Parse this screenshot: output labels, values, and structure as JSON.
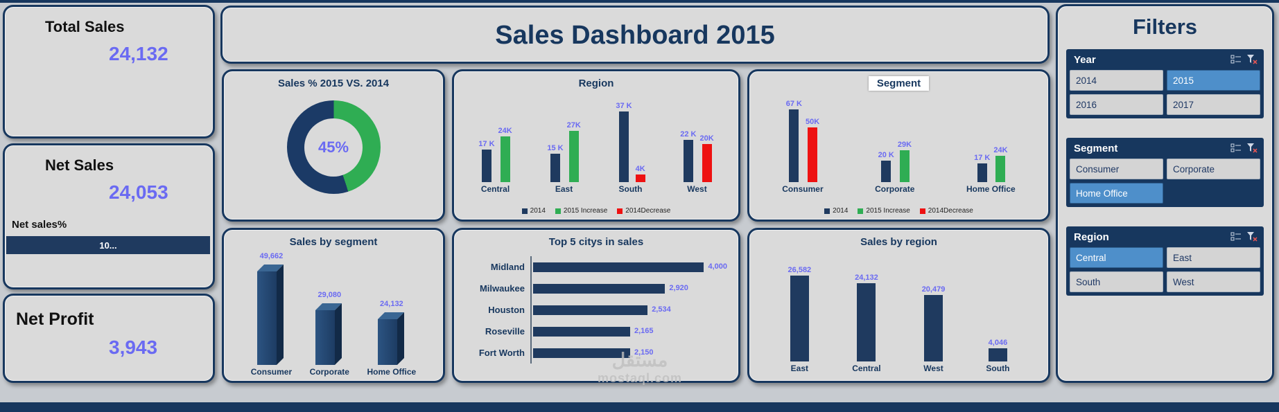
{
  "header": {
    "title": "Sales Dashboard 2015"
  },
  "watermark": {
    "line1": "مستقل",
    "line2": "mostaql.com"
  },
  "colors": {
    "navy": "#17375e",
    "bar_navy": "#1f3a5f",
    "green": "#2fad53",
    "red": "#ee1111",
    "accent": "#6a6af2",
    "panel_bg": "#dadada",
    "selected_blue": "#4e8fca"
  },
  "kpis": {
    "total_sales": {
      "label": "Total Sales",
      "value": "24,132"
    },
    "net_sales": {
      "label": "Net Sales",
      "value": "24,053",
      "sub_label": "Net sales%",
      "bar_text": "10..."
    },
    "net_profit": {
      "label": "Net Profit",
      "value": "3,943"
    }
  },
  "filters": {
    "title": "Filters",
    "groups": [
      {
        "label": "Year",
        "options": [
          {
            "label": "2014",
            "selected": false
          },
          {
            "label": "2015",
            "selected": true
          },
          {
            "label": "2016",
            "selected": false
          },
          {
            "label": "2017",
            "selected": false
          }
        ]
      },
      {
        "label": "Segment",
        "options": [
          {
            "label": "Consumer",
            "selected": false
          },
          {
            "label": "Corporate",
            "selected": false
          },
          {
            "label": "Home Office",
            "selected": true
          }
        ]
      },
      {
        "label": "Region",
        "options": [
          {
            "label": "Central",
            "selected": true
          },
          {
            "label": "East",
            "selected": false
          },
          {
            "label": "South",
            "selected": false
          },
          {
            "label": "West",
            "selected": false
          }
        ]
      }
    ]
  },
  "chart_data": [
    {
      "id": "donut",
      "type": "pie",
      "title": "Sales % 2015 VS. 2014",
      "center_label": "45%",
      "slices": [
        {
          "name": "2015 share",
          "value": 45,
          "color": "#2fad53"
        },
        {
          "name": "2014 share",
          "value": 55,
          "color": "#1b3a66"
        }
      ]
    },
    {
      "id": "region",
      "type": "bar",
      "title": "Region",
      "ylim": [
        0,
        40000
      ],
      "legend": [
        {
          "name": "2014",
          "color": "#1f3a5f"
        },
        {
          "name": "2015 Increase",
          "color": "#2fad53"
        },
        {
          "name": "2014Decrease",
          "color": "#ee1111"
        }
      ],
      "groups": [
        {
          "category": "Central",
          "bars": [
            {
              "series": "2014",
              "label": "17 K",
              "value": 17000,
              "color": "#1f3a5f"
            },
            {
              "series": "2015 Increase",
              "label": "24K",
              "value": 24000,
              "color": "#2fad53"
            }
          ]
        },
        {
          "category": "East",
          "bars": [
            {
              "series": "2014",
              "label": "15 K",
              "value": 15000,
              "color": "#1f3a5f"
            },
            {
              "series": "2015 Increase",
              "label": "27K",
              "value": 27000,
              "color": "#2fad53"
            }
          ]
        },
        {
          "category": "South",
          "bars": [
            {
              "series": "2014",
              "label": "37 K",
              "value": 37000,
              "color": "#1f3a5f"
            },
            {
              "series": "2014Decrease",
              "label": "4K",
              "value": 4000,
              "color": "#ee1111"
            }
          ]
        },
        {
          "category": "West",
          "bars": [
            {
              "series": "2014",
              "label": "22 K",
              "value": 22000,
              "color": "#1f3a5f"
            },
            {
              "series": "2014Decrease",
              "label": "20K",
              "value": 20000,
              "color": "#ee1111"
            }
          ]
        }
      ]
    },
    {
      "id": "segment",
      "type": "bar",
      "title": "Segment",
      "ylim": [
        0,
        70000
      ],
      "legend": [
        {
          "name": "2014",
          "color": "#1f3a5f"
        },
        {
          "name": "2015 Increase",
          "color": "#2fad53"
        },
        {
          "name": "2014Decrease",
          "color": "#ee1111"
        }
      ],
      "groups": [
        {
          "category": "Consumer",
          "bars": [
            {
              "series": "2014",
              "label": "67 K",
              "value": 67000,
              "color": "#1f3a5f"
            },
            {
              "series": "2014Decrease",
              "label": "50K",
              "value": 50000,
              "color": "#ee1111"
            }
          ]
        },
        {
          "category": "Corporate",
          "bars": [
            {
              "series": "2014",
              "label": "20 K",
              "value": 20000,
              "color": "#1f3a5f"
            },
            {
              "series": "2015 Increase",
              "label": "29K",
              "value": 29000,
              "color": "#2fad53"
            }
          ]
        },
        {
          "category": "Home Office",
          "bars": [
            {
              "series": "2014",
              "label": "17 K",
              "value": 17000,
              "color": "#1f3a5f"
            },
            {
              "series": "2015 Increase",
              "label": "24K",
              "value": 24000,
              "color": "#2fad53"
            }
          ]
        }
      ]
    },
    {
      "id": "sales_by_segment",
      "type": "bar",
      "style": "3d",
      "title": "Sales by segment",
      "ylim": [
        0,
        55000
      ],
      "groups": [
        {
          "category": "Consumer",
          "value": 49662,
          "label": "49,662"
        },
        {
          "category": "Corporate",
          "value": 29080,
          "label": "29,080"
        },
        {
          "category": "Home Office",
          "value": 24132,
          "label": "24,132"
        }
      ]
    },
    {
      "id": "top5",
      "type": "bar",
      "orientation": "horizontal",
      "title": "Top 5 citys in sales",
      "xlim": [
        0,
        4300
      ],
      "groups": [
        {
          "category": "Midland",
          "value": 4000,
          "label": "4,000"
        },
        {
          "category": "Milwaukee",
          "value": 2920,
          "label": "2,920"
        },
        {
          "category": "Houston",
          "value": 2534,
          "label": "2,534"
        },
        {
          "category": "Roseville",
          "value": 2165,
          "label": "2,165"
        },
        {
          "category": "Fort Worth",
          "value": 2150,
          "label": "2,150"
        }
      ]
    },
    {
      "id": "sales_by_region",
      "type": "bar",
      "title": "Sales by region",
      "ylim": [
        0,
        30000
      ],
      "groups": [
        {
          "category": "East",
          "value": 26582,
          "label": "26,582"
        },
        {
          "category": "Central",
          "value": 24132,
          "label": "24,132"
        },
        {
          "category": "West",
          "value": 20479,
          "label": "20,479"
        },
        {
          "category": "South",
          "value": 4046,
          "label": "4,046"
        }
      ]
    }
  ]
}
